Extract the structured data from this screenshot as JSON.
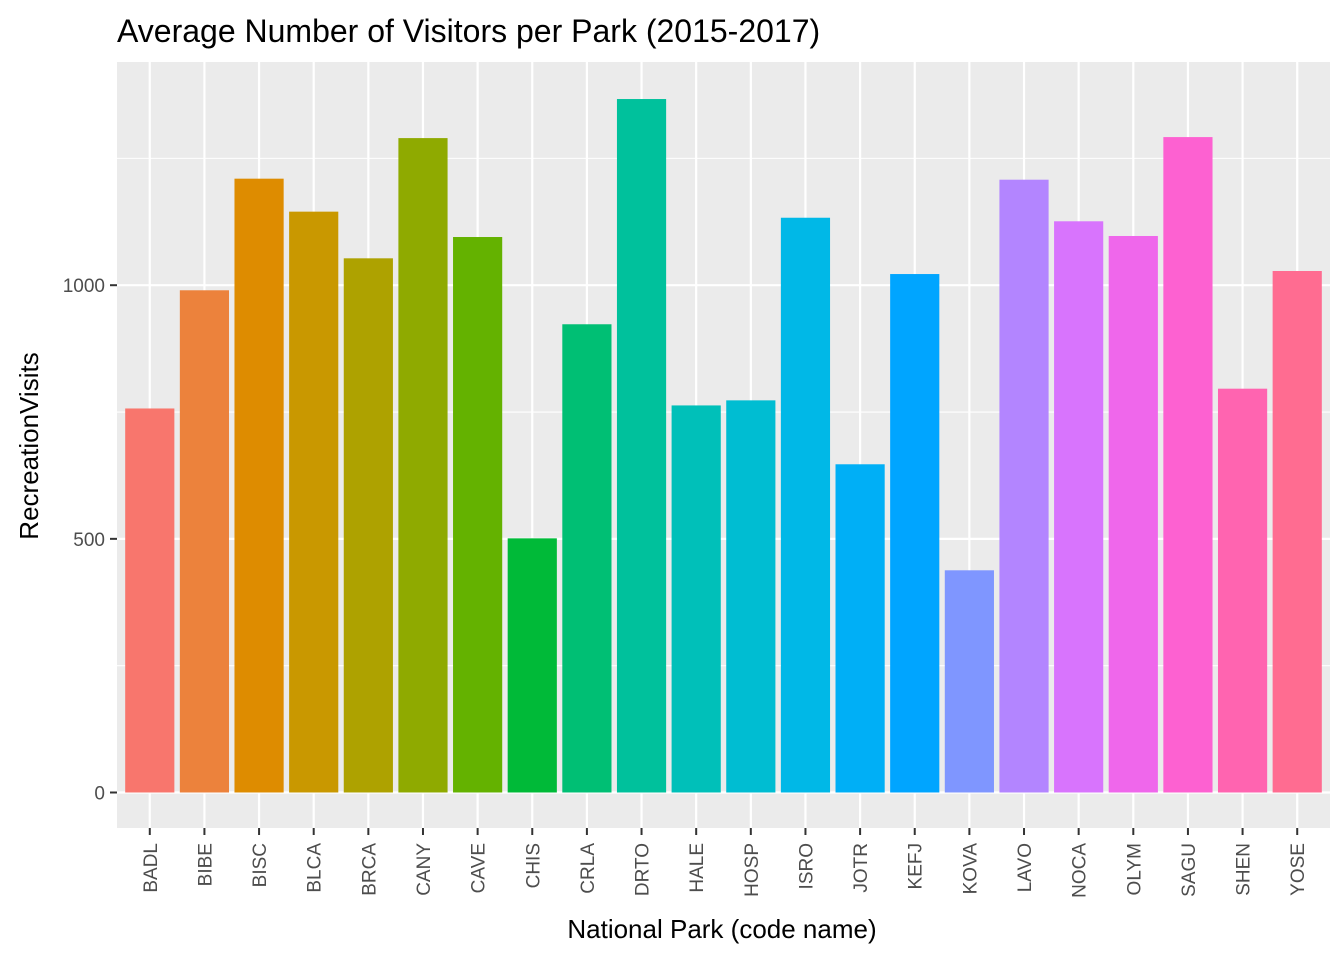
{
  "chart_data": {
    "type": "bar",
    "title": "Average Number of Visitors per Park (2015-2017)",
    "xlabel": "National Park (code name)",
    "ylabel": "RecreationVisits",
    "categories": [
      "BADL",
      "BIBE",
      "BISC",
      "BLCA",
      "BRCA",
      "CANY",
      "CAVE",
      "CHIS",
      "CRLA",
      "DRTO",
      "HALE",
      "HOSP",
      "ISRO",
      "JOTR",
      "KEFJ",
      "KOVA",
      "LAVO",
      "NOCA",
      "OLYM",
      "SAGU",
      "SHEN",
      "YOSE"
    ],
    "values": [
      757,
      990,
      1210,
      1145,
      1053,
      1290,
      1095,
      501,
      923,
      1367,
      763,
      773,
      1133,
      647,
      1022,
      438,
      1208,
      1126,
      1097,
      1292,
      796,
      1028
    ],
    "colors": [
      "#F8766D",
      "#EC823C",
      "#DE8C00",
      "#C99800",
      "#AEA200",
      "#8FAA00",
      "#64B200",
      "#00BA38",
      "#00BF74",
      "#00C19C",
      "#00C0B9",
      "#00BDD2",
      "#00B8E7",
      "#00AFF6",
      "#00A5FF",
      "#7F96FF",
      "#B385FF",
      "#D874FD",
      "#EF67EB",
      "#FD61D1",
      "#FF64B0",
      "#FF6C91"
    ],
    "y_ticks": [
      0,
      500,
      1000
    ],
    "ylim": [
      -70,
      1440
    ],
    "grid": true,
    "legend": "none",
    "panel_background": "#EBEBEB",
    "grid_color": "#FFFFFF"
  }
}
